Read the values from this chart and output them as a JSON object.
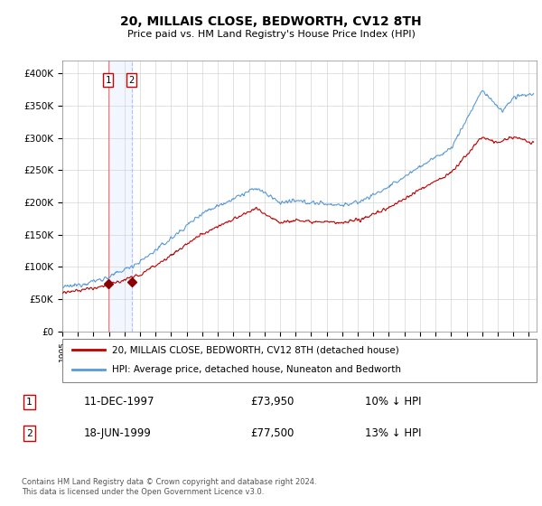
{
  "title": "20, MILLAIS CLOSE, BEDWORTH, CV12 8TH",
  "subtitle": "Price paid vs. HM Land Registry's House Price Index (HPI)",
  "legend_line1": "20, MILLAIS CLOSE, BEDWORTH, CV12 8TH (detached house)",
  "legend_line2": "HPI: Average price, detached house, Nuneaton and Bedworth",
  "transaction1_date": "11-DEC-1997",
  "transaction1_price": "£73,950",
  "transaction1_hpi": "10% ↓ HPI",
  "transaction2_date": "18-JUN-1999",
  "transaction2_price": "£77,500",
  "transaction2_hpi": "13% ↓ HPI",
  "footer": "Contains HM Land Registry data © Crown copyright and database right 2024.\nThis data is licensed under the Open Government Licence v3.0.",
  "hpi_color": "#5b9bd5",
  "price_color": "#c00000",
  "marker_color": "#8b0000",
  "ylim": [
    0,
    420000
  ],
  "yticks": [
    0,
    50000,
    100000,
    150000,
    200000,
    250000,
    300000,
    350000,
    400000
  ],
  "ytick_labels": [
    "£0",
    "£50K",
    "£100K",
    "£150K",
    "£200K",
    "£250K",
    "£300K",
    "£350K",
    "£400K"
  ],
  "transaction1_x": 1997.94,
  "transaction1_y": 73950,
  "transaction2_x": 1999.46,
  "transaction2_y": 77500,
  "xlim_start": 1995.0,
  "xlim_end": 2025.5
}
